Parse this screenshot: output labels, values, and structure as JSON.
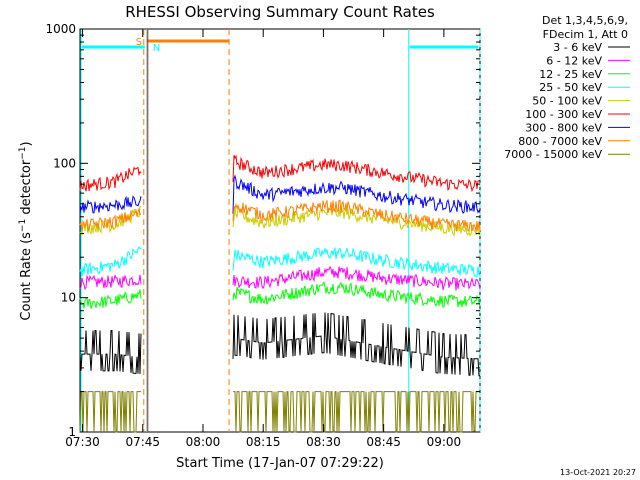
{
  "chart_data": {
    "type": "line",
    "title": "RHESSI Observing Summary Count Rates",
    "xlabel": "Start Time (17-Jan-07 07:29:22)",
    "ylabel": "Count Rate (s⁻¹ detector⁻¹)",
    "ylabel_parts": {
      "main": "Count Rate (s",
      "sup1": "−1",
      "mid": " detector",
      "sup2": "−1",
      "end": ")"
    },
    "y_scale": "log",
    "ylim": [
      1,
      1000
    ],
    "xlim": [
      "07:29:22",
      "09:09:00"
    ],
    "x_ticks": [
      "07:30",
      "07:45",
      "08:00",
      "08:15",
      "08:30",
      "08:45",
      "09:00"
    ],
    "y_ticks": [
      "1",
      "10",
      "100",
      "1000"
    ],
    "legend_header": [
      "Det 1,3,4,5,6,9,",
      "FDecim 1, Att 0"
    ],
    "legend_position": "right",
    "timestamp": "13-Oct-2021 20:27",
    "annotations": {
      "saa_label": "S",
      "night_label": "N"
    },
    "saa_interval": [
      "07:46:00",
      "08:06:30"
    ],
    "night_intervals": [
      [
        "07:29:22",
        "07:46:00"
      ],
      [
        "08:51:00",
        "09:09:00"
      ]
    ],
    "data_gap": [
      "07:46:00",
      "08:07:30"
    ],
    "series": [
      {
        "name": "3 - 6 keV",
        "color": "#000000",
        "segments": [
          {
            "x": [
              "07:29:22",
              "07:38:00",
              "07:44:30"
            ],
            "y": [
              3.8,
              3.8,
              3.6
            ]
          },
          {
            "x": [
              "08:07:30",
              "08:15:00",
              "08:30:00",
              "08:45:00",
              "09:00:00",
              "09:09:00"
            ],
            "y": [
              5.0,
              4.6,
              5.2,
              4.3,
              3.6,
              3.5
            ]
          }
        ]
      },
      {
        "name": "6 - 12 keV",
        "color": "#ff00ff",
        "segments": [
          {
            "x": [
              "07:29:22",
              "07:38:00",
              "07:44:30"
            ],
            "y": [
              13.0,
              13.2,
              13.8
            ]
          },
          {
            "x": [
              "08:07:30",
              "08:15:00",
              "08:30:00",
              "08:35:00",
              "08:45:00",
              "09:00:00",
              "09:09:00"
            ],
            "y": [
              13.5,
              13.0,
              15.5,
              15.5,
              14.0,
              12.8,
              12.5
            ]
          }
        ]
      },
      {
        "name": "12 - 25 keV",
        "color": "#00ff00",
        "segments": [
          {
            "x": [
              "07:29:22",
              "07:38:00",
              "07:44:30"
            ],
            "y": [
              9.0,
              9.5,
              10.5
            ]
          },
          {
            "x": [
              "08:07:30",
              "08:15:00",
              "08:30:00",
              "08:35:00",
              "08:45:00",
              "09:00:00",
              "09:09:00"
            ],
            "y": [
              11.0,
              9.8,
              12.0,
              12.0,
              10.5,
              9.5,
              9.3
            ]
          }
        ]
      },
      {
        "name": "25 - 50 keV",
        "color": "#00ffff",
        "segments": [
          {
            "x": [
              "07:29:22",
              "07:38:00",
              "07:44:30"
            ],
            "y": [
              16.0,
              17.5,
              23.0
            ]
          },
          {
            "x": [
              "08:07:30",
              "08:15:00",
              "08:30:00",
              "08:35:00",
              "08:45:00",
              "09:00:00",
              "09:09:00"
            ],
            "y": [
              21.0,
              18.5,
              21.5,
              21.5,
              19.0,
              16.5,
              16.0
            ]
          }
        ]
      },
      {
        "name": "50 - 100 keV",
        "color": "#cccc00",
        "segments": [
          {
            "x": [
              "07:29:22",
              "07:38:00",
              "07:44:30"
            ],
            "y": [
              33.0,
              35.0,
              44.0
            ]
          },
          {
            "x": [
              "08:07:30",
              "08:15:00",
              "08:30:00",
              "08:35:00",
              "08:45:00",
              "09:00:00",
              "09:09:00"
            ],
            "y": [
              43.0,
              36.0,
              43.0,
              43.0,
              38.0,
              33.0,
              32.0
            ]
          }
        ]
      },
      {
        "name": "100 - 300 keV",
        "color": "#ff0000",
        "segments": [
          {
            "x": [
              "07:29:22",
              "07:38:00",
              "07:44:30"
            ],
            "y": [
              68.0,
              73.0,
              92.0
            ]
          },
          {
            "x": [
              "08:07:30",
              "08:15:00",
              "08:30:00",
              "08:35:00",
              "08:45:00",
              "09:00:00",
              "09:09:00"
            ],
            "y": [
              105.0,
              85.0,
              98.0,
              97.0,
              85.0,
              71.0,
              68.0
            ]
          }
        ]
      },
      {
        "name": "300 - 800 keV",
        "color": "#0000ff",
        "segments": [
          {
            "x": [
              "07:29:22",
              "07:38:00",
              "07:44:30"
            ],
            "y": [
              47.0,
              49.0,
              52.0
            ]
          },
          {
            "x": [
              "08:07:30",
              "08:15:00",
              "08:30:00",
              "08:35:00",
              "08:45:00",
              "09:00:00",
              "09:09:00"
            ],
            "y": [
              75.0,
              58.0,
              66.0,
              66.0,
              57.0,
              49.0,
              47.0
            ]
          }
        ]
      },
      {
        "name": "800 - 7000 keV",
        "color": "#ff8000",
        "segments": [
          {
            "x": [
              "07:29:22",
              "07:38:00",
              "07:44:30"
            ],
            "y": [
              34.0,
              37.0,
              43.0
            ]
          },
          {
            "x": [
              "08:07:30",
              "08:15:00",
              "08:30:00",
              "08:35:00",
              "08:45:00",
              "09:00:00",
              "09:09:00"
            ],
            "y": [
              50.0,
              41.0,
              48.0,
              48.0,
              41.0,
              35.0,
              34.0
            ]
          }
        ]
      },
      {
        "name": "7000 - 15000 keV",
        "color": "#808000",
        "segments": [
          {
            "x": [
              "07:29:22",
              "07:38:00",
              "07:44:30"
            ],
            "y": [
              1.5,
              1.5,
              1.5
            ]
          },
          {
            "x": [
              "08:07:30",
              "08:15:00",
              "08:30:00",
              "08:35:00",
              "08:45:00",
              "09:00:00",
              "09:09:00"
            ],
            "y": [
              1.5,
              1.5,
              2.3,
              2.3,
              1.5,
              1.5,
              1.5
            ]
          }
        ]
      }
    ]
  }
}
